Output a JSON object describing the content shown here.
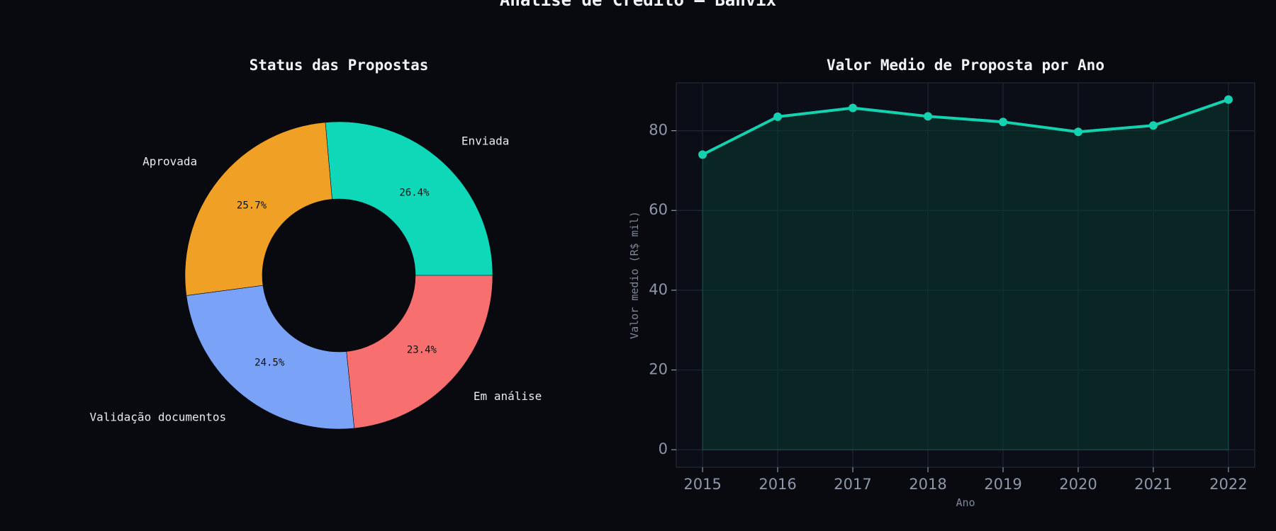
{
  "suptitle": "Análise de Crédito — Banvix",
  "chart_data": [
    {
      "type": "pie",
      "title": "Status das Propostas",
      "donut": true,
      "start_angle": "0 degrees (3 o'clock), counter-clockwise",
      "categories": [
        "Enviada",
        "Aprovada",
        "Validação documentos",
        "Em análise"
      ],
      "values": [
        26.4,
        25.7,
        24.5,
        23.4
      ],
      "percent_labels": [
        "26.4%",
        "25.7%",
        "24.5%",
        "23.4%"
      ],
      "colors": [
        "#0fd8b8",
        "#f0a024",
        "#7aa2f7",
        "#f7706f"
      ]
    },
    {
      "type": "area",
      "title": "Valor Medio de Proposta por Ano",
      "xlabel": "Ano",
      "ylabel": "Valor medio (R$ mil)",
      "x": [
        2015,
        2016,
        2017,
        2018,
        2019,
        2020,
        2021,
        2022
      ],
      "values": [
        74,
        83.5,
        85.7,
        83.6,
        82.2,
        79.7,
        81.3,
        87.8
      ],
      "ylim": [
        -4.4,
        92
      ],
      "yticks": [
        0,
        20,
        40,
        60,
        80
      ],
      "grid": true,
      "line_color": "#14d2b0",
      "fill_color": "#0a3a32"
    }
  ]
}
